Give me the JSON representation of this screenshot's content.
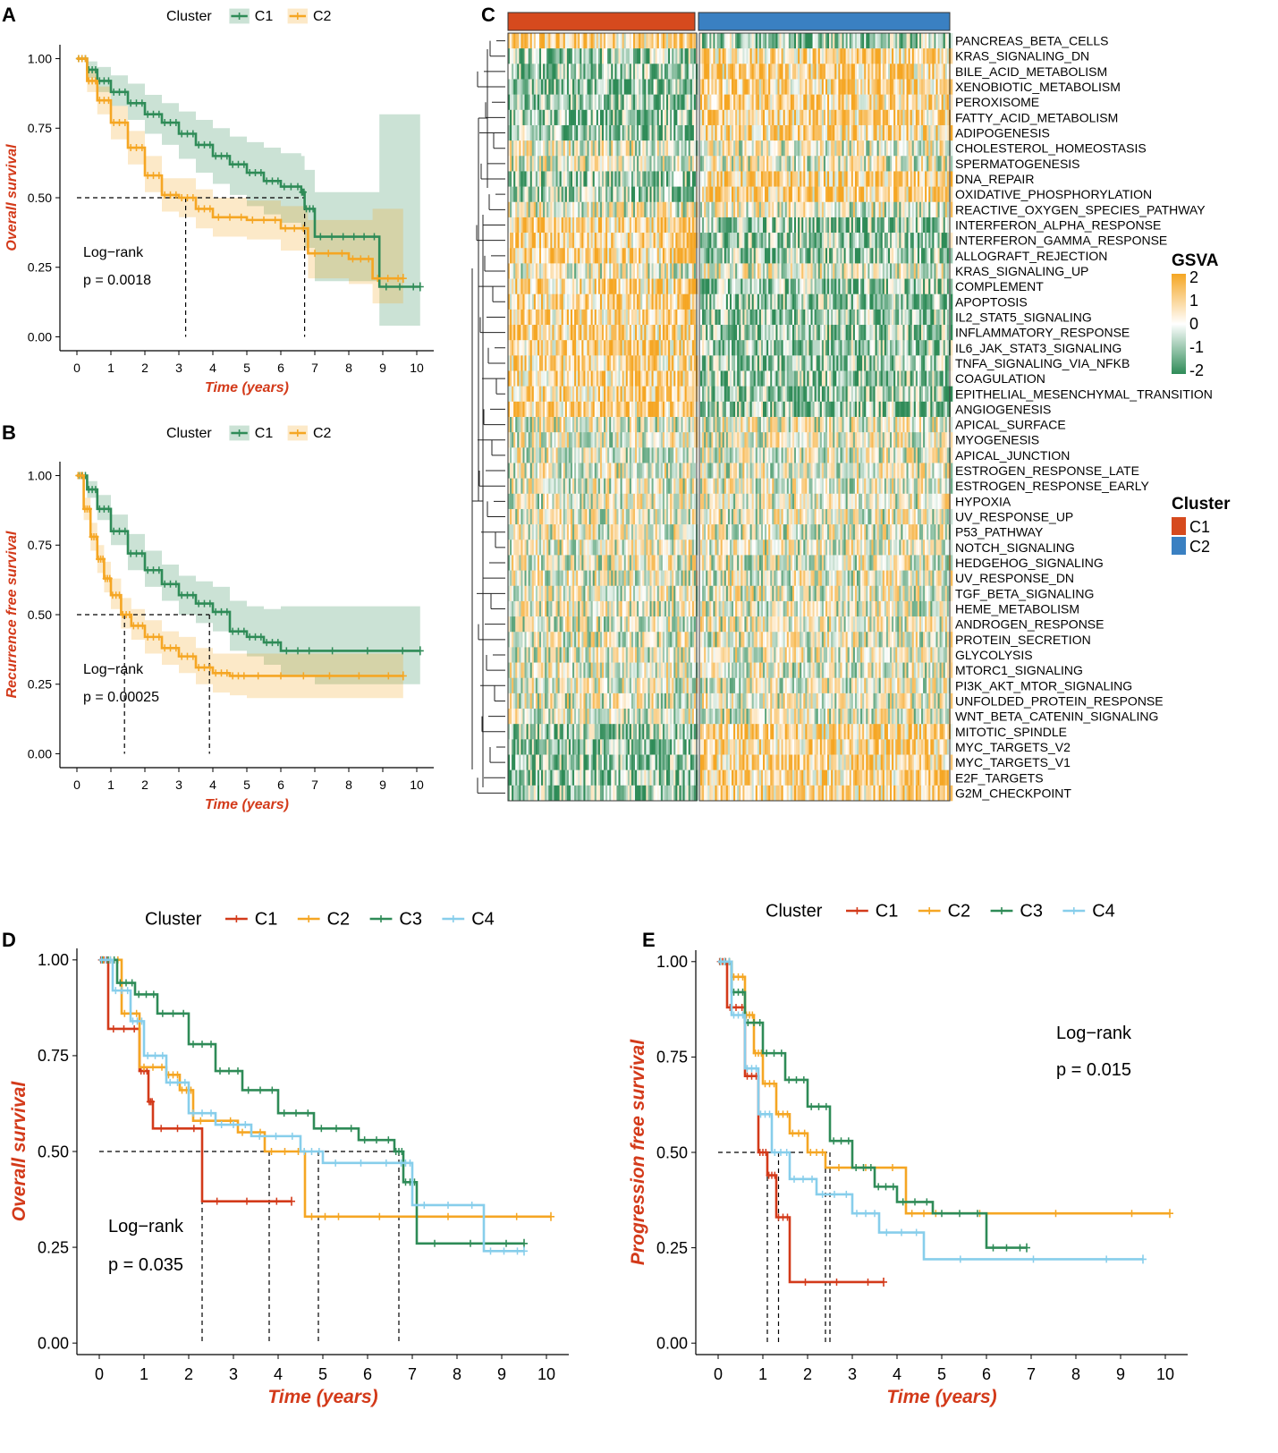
{
  "colors": {
    "c1_two": "#2e8b57",
    "c2_two": "#f5a623",
    "d_c1": "#d33a1a",
    "d_c2": "#f5a623",
    "d_c3": "#2e8b57",
    "d_c4": "#87ceeb",
    "axis_label": "#d33a1a",
    "heat_c1_bar": "#d64a1e",
    "heat_c2_bar": "#3a80c2"
  },
  "chart_data": [
    {
      "panel": "A",
      "type": "line",
      "subtype": "kaplan-meier",
      "legend_title": "Cluster",
      "legend_position": "top",
      "xlabel": "Time (years)",
      "ylabel": "Overall survival",
      "xlim": [
        -0.5,
        10.5
      ],
      "ylim": [
        -0.05,
        1.05
      ],
      "xticks": [
        "0",
        "1",
        "2",
        "3",
        "4",
        "5",
        "6",
        "7",
        "8",
        "9",
        "10"
      ],
      "yticks": [
        "0.00",
        "0.25",
        "0.50",
        "0.75",
        "1.00"
      ],
      "annotation": [
        "Log−rank",
        "p = 0.0018"
      ],
      "median_lines": [
        3.2,
        6.7
      ],
      "series": [
        {
          "name": "C1",
          "color": "#2e8b57",
          "x": [
            0,
            0.3,
            0.6,
            1.0,
            1.5,
            2.0,
            2.5,
            3.0,
            3.5,
            4.0,
            4.5,
            5.0,
            5.5,
            6.0,
            6.6,
            6.7,
            7.0,
            8.0,
            8.9,
            10.1
          ],
          "y": [
            1.0,
            0.96,
            0.92,
            0.88,
            0.84,
            0.8,
            0.77,
            0.73,
            0.69,
            0.65,
            0.62,
            0.59,
            0.56,
            0.54,
            0.52,
            0.46,
            0.36,
            0.36,
            0.18,
            0.18
          ],
          "lower": [
            1.0,
            0.93,
            0.88,
            0.83,
            0.78,
            0.73,
            0.69,
            0.64,
            0.59,
            0.55,
            0.51,
            0.47,
            0.44,
            0.41,
            0.38,
            0.32,
            0.2,
            0.2,
            0.04,
            0.04
          ],
          "upper": [
            1.0,
            0.99,
            0.97,
            0.94,
            0.91,
            0.87,
            0.84,
            0.81,
            0.78,
            0.75,
            0.72,
            0.7,
            0.68,
            0.66,
            0.65,
            0.6,
            0.52,
            0.52,
            0.8,
            0.8
          ]
        },
        {
          "name": "C2",
          "color": "#f5a623",
          "x": [
            0,
            0.3,
            0.6,
            1.0,
            1.5,
            2.0,
            2.5,
            3.0,
            3.5,
            4.0,
            5.0,
            6.0,
            6.8,
            8.0,
            8.7,
            9.6
          ],
          "y": [
            1.0,
            0.92,
            0.85,
            0.77,
            0.68,
            0.58,
            0.51,
            0.5,
            0.46,
            0.43,
            0.42,
            0.39,
            0.3,
            0.28,
            0.21,
            0.21
          ],
          "lower": [
            1.0,
            0.88,
            0.8,
            0.71,
            0.62,
            0.52,
            0.45,
            0.43,
            0.39,
            0.36,
            0.35,
            0.31,
            0.21,
            0.19,
            0.12,
            0.12
          ],
          "upper": [
            1.0,
            0.96,
            0.9,
            0.83,
            0.74,
            0.65,
            0.57,
            0.57,
            0.53,
            0.5,
            0.49,
            0.47,
            0.42,
            0.42,
            0.46,
            0.46
          ]
        }
      ]
    },
    {
      "panel": "B",
      "type": "line",
      "subtype": "kaplan-meier",
      "legend_title": "Cluster",
      "legend_position": "top",
      "xlabel": "Time (years)",
      "ylabel": "Recurrence free survival",
      "xlim": [
        -0.5,
        10.5
      ],
      "ylim": [
        -0.05,
        1.05
      ],
      "xticks": [
        "0",
        "1",
        "2",
        "3",
        "4",
        "5",
        "6",
        "7",
        "8",
        "9",
        "10"
      ],
      "yticks": [
        "0.00",
        "0.25",
        "0.50",
        "0.75",
        "1.00"
      ],
      "annotation": [
        "Log−rank",
        "p = 0.00025"
      ],
      "median_lines": [
        1.4,
        3.9
      ],
      "series": [
        {
          "name": "C1",
          "color": "#2e8b57",
          "x": [
            0,
            0.3,
            0.6,
            1.0,
            1.5,
            2.0,
            2.5,
            3.0,
            3.5,
            4.0,
            4.5,
            5.0,
            5.5,
            6.0,
            7.0,
            10.1
          ],
          "y": [
            1.0,
            0.95,
            0.88,
            0.8,
            0.72,
            0.66,
            0.61,
            0.57,
            0.54,
            0.51,
            0.44,
            0.42,
            0.4,
            0.37,
            0.37,
            0.37
          ],
          "lower": [
            1.0,
            0.92,
            0.84,
            0.75,
            0.66,
            0.6,
            0.55,
            0.5,
            0.47,
            0.44,
            0.37,
            0.35,
            0.32,
            0.28,
            0.25,
            0.25
          ],
          "upper": [
            1.0,
            0.98,
            0.93,
            0.86,
            0.79,
            0.73,
            0.68,
            0.64,
            0.62,
            0.6,
            0.55,
            0.53,
            0.52,
            0.53,
            0.53,
            0.53
          ]
        },
        {
          "name": "C2",
          "color": "#f5a623",
          "x": [
            0,
            0.2,
            0.4,
            0.6,
            0.8,
            1.0,
            1.3,
            1.6,
            2.0,
            2.5,
            3.0,
            3.5,
            4.0,
            4.5,
            5.0,
            7.0,
            9.6
          ],
          "y": [
            1.0,
            0.88,
            0.78,
            0.7,
            0.63,
            0.57,
            0.5,
            0.46,
            0.42,
            0.38,
            0.35,
            0.31,
            0.29,
            0.28,
            0.28,
            0.28,
            0.28
          ],
          "lower": [
            1.0,
            0.84,
            0.73,
            0.65,
            0.58,
            0.52,
            0.45,
            0.41,
            0.36,
            0.32,
            0.29,
            0.25,
            0.22,
            0.21,
            0.2,
            0.2,
            0.2
          ],
          "upper": [
            1.0,
            0.92,
            0.83,
            0.75,
            0.69,
            0.63,
            0.56,
            0.52,
            0.48,
            0.44,
            0.42,
            0.38,
            0.36,
            0.36,
            0.36,
            0.36,
            0.36
          ]
        }
      ]
    },
    {
      "panel": "C",
      "type": "heatmap",
      "legend_gsva_title": "GSVA",
      "gsva_ticks": [
        "2",
        "1",
        "0",
        "-1",
        "-2"
      ],
      "legend_cluster_title": "Cluster",
      "clusters": [
        "C1",
        "C2"
      ],
      "gsva_low_color": "#2e8b57",
      "gsva_mid_color": "#ffffff",
      "gsva_high_color": "#f5a623",
      "row_patterns": [
        1,
        -1,
        -1,
        -1,
        -1,
        -1,
        -1,
        0,
        0,
        -1,
        -1,
        0,
        1,
        1,
        1,
        0,
        1,
        1,
        1,
        1,
        1,
        1,
        1,
        1,
        1,
        0,
        0,
        0,
        0,
        0,
        0,
        0,
        0,
        0,
        0,
        0,
        0,
        0,
        0,
        0,
        0,
        0,
        0,
        0,
        0,
        -1,
        -1,
        -1,
        -1,
        -1
      ],
      "rows": [
        "PANCREAS_BETA_CELLS",
        "KRAS_SIGNALING_DN",
        "BILE_ACID_METABOLISM",
        "XENOBIOTIC_METABOLISM",
        "PEROXISOME",
        "FATTY_ACID_METABOLISM",
        "ADIPOGENESIS",
        "CHOLESTEROL_HOMEOSTASIS",
        "SPERMATOGENESIS",
        "DNA_REPAIR",
        "OXIDATIVE_PHOSPHORYLATION",
        "REACTIVE_OXYGEN_SPECIES_PATHWAY",
        "INTERFERON_ALPHA_RESPONSE",
        "INTERFERON_GAMMA_RESPONSE",
        "ALLOGRAFT_REJECTION",
        "KRAS_SIGNALING_UP",
        "COMPLEMENT",
        "APOPTOSIS",
        "IL2_STAT5_SIGNALING",
        "INFLAMMATORY_RESPONSE",
        "IL6_JAK_STAT3_SIGNALING",
        "TNFA_SIGNALING_VIA_NFKB",
        "COAGULATION",
        "EPITHELIAL_MESENCHYMAL_TRANSITION",
        "ANGIOGENESIS",
        "APICAL_SURFACE",
        "MYOGENESIS",
        "APICAL_JUNCTION",
        "ESTROGEN_RESPONSE_LATE",
        "ESTROGEN_RESPONSE_EARLY",
        "HYPOXIA",
        "UV_RESPONSE_UP",
        "P53_PATHWAY",
        "NOTCH_SIGNALING",
        "HEDGEHOG_SIGNALING",
        "UV_RESPONSE_DN",
        "TGF_BETA_SIGNALING",
        "HEME_METABOLISM",
        "ANDROGEN_RESPONSE",
        "PROTEIN_SECRETION",
        "GLYCOLYSIS",
        "MTORC1_SIGNALING",
        "PI3K_AKT_MTOR_SIGNALING",
        "UNFOLDED_PROTEIN_RESPONSE",
        "WNT_BETA_CATENIN_SIGNALING",
        "MITOTIC_SPINDLE",
        "MYC_TARGETS_V2",
        "MYC_TARGETS_V1",
        "E2F_TARGETS",
        "G2M_CHECKPOINT"
      ]
    },
    {
      "panel": "D",
      "type": "line",
      "subtype": "kaplan-meier",
      "legend_title": "Cluster",
      "legend_position": "top",
      "xlabel": "Time (years)",
      "ylabel": "Overall survival",
      "xlim": [
        -0.5,
        10.5
      ],
      "ylim": [
        -0.03,
        1.03
      ],
      "xticks": [
        "0",
        "1",
        "2",
        "3",
        "4",
        "5",
        "6",
        "7",
        "8",
        "9",
        "10"
      ],
      "yticks": [
        "0.00",
        "0.25",
        "0.50",
        "0.75",
        "1.00"
      ],
      "annotation": [
        "Log−rank",
        "p = 0.035"
      ],
      "median_lines": [
        2.3,
        3.8,
        4.9,
        6.7
      ],
      "series": [
        {
          "name": "C1",
          "color": "#d33a1a",
          "x": [
            0,
            0.2,
            0.9,
            1.1,
            1.2,
            2.3,
            4.3
          ],
          "y": [
            1.0,
            0.82,
            0.71,
            0.63,
            0.56,
            0.37,
            0.37
          ]
        },
        {
          "name": "C2",
          "color": "#f5a623",
          "x": [
            0,
            0.5,
            0.9,
            1.5,
            1.8,
            2.1,
            3.1,
            3.7,
            4.6,
            5.5,
            10.1
          ],
          "y": [
            1.0,
            0.86,
            0.72,
            0.7,
            0.66,
            0.58,
            0.55,
            0.5,
            0.33,
            0.33,
            0.33
          ]
        },
        {
          "name": "C3",
          "color": "#2e8b57",
          "x": [
            0,
            0.4,
            0.8,
            1.3,
            2.0,
            2.6,
            3.2,
            4.0,
            4.8,
            5.8,
            6.6,
            6.8,
            7.1,
            9.5
          ],
          "y": [
            1.0,
            0.94,
            0.91,
            0.86,
            0.78,
            0.71,
            0.66,
            0.6,
            0.56,
            0.53,
            0.5,
            0.42,
            0.26,
            0.26
          ]
        },
        {
          "name": "C4",
          "color": "#87ceeb",
          "x": [
            0,
            0.3,
            0.7,
            1.0,
            1.5,
            2.0,
            2.6,
            3.4,
            4.5,
            5.0,
            6.7,
            7.0,
            8.6,
            9.5
          ],
          "y": [
            1.0,
            0.92,
            0.84,
            0.75,
            0.68,
            0.6,
            0.57,
            0.54,
            0.5,
            0.47,
            0.47,
            0.36,
            0.24,
            0.24
          ]
        }
      ]
    },
    {
      "panel": "E",
      "type": "line",
      "subtype": "kaplan-meier",
      "legend_title": "Cluster",
      "legend_position": "top",
      "xlabel": "Time (years)",
      "ylabel": "Progression free survival",
      "xlim": [
        -0.5,
        10.5
      ],
      "ylim": [
        -0.03,
        1.03
      ],
      "xticks": [
        "0",
        "1",
        "2",
        "3",
        "4",
        "5",
        "6",
        "7",
        "8",
        "9",
        "10"
      ],
      "yticks": [
        "0.00",
        "0.25",
        "0.50",
        "0.75",
        "1.00"
      ],
      "annotation": [
        "Log−rank",
        "p = 0.015"
      ],
      "median_lines": [
        1.1,
        1.35,
        2.4,
        2.5
      ],
      "series": [
        {
          "name": "C1",
          "color": "#d33a1a",
          "x": [
            0,
            0.2,
            0.6,
            0.9,
            1.1,
            1.3,
            1.6,
            3.7
          ],
          "y": [
            1.0,
            0.88,
            0.7,
            0.5,
            0.44,
            0.33,
            0.16,
            0.16
          ]
        },
        {
          "name": "C2",
          "color": "#f5a623",
          "x": [
            0,
            0.3,
            0.6,
            0.8,
            1.0,
            1.3,
            1.6,
            2.0,
            2.4,
            4.2,
            5.0,
            10.1
          ],
          "y": [
            1.0,
            0.96,
            0.86,
            0.76,
            0.68,
            0.6,
            0.55,
            0.5,
            0.46,
            0.34,
            0.34,
            0.34
          ]
        },
        {
          "name": "C3",
          "color": "#2e8b57",
          "x": [
            0,
            0.3,
            0.6,
            1.0,
            1.5,
            2.0,
            2.5,
            3.0,
            3.5,
            4.0,
            4.8,
            6.0,
            6.9
          ],
          "y": [
            1.0,
            0.92,
            0.84,
            0.76,
            0.69,
            0.62,
            0.53,
            0.46,
            0.41,
            0.37,
            0.34,
            0.25,
            0.25
          ]
        },
        {
          "name": "C4",
          "color": "#87ceeb",
          "x": [
            0,
            0.3,
            0.6,
            0.9,
            1.2,
            1.6,
            2.2,
            3.0,
            3.6,
            4.6,
            9.5
          ],
          "y": [
            1.0,
            0.86,
            0.72,
            0.6,
            0.5,
            0.43,
            0.39,
            0.34,
            0.29,
            0.22,
            0.22
          ]
        }
      ]
    }
  ]
}
